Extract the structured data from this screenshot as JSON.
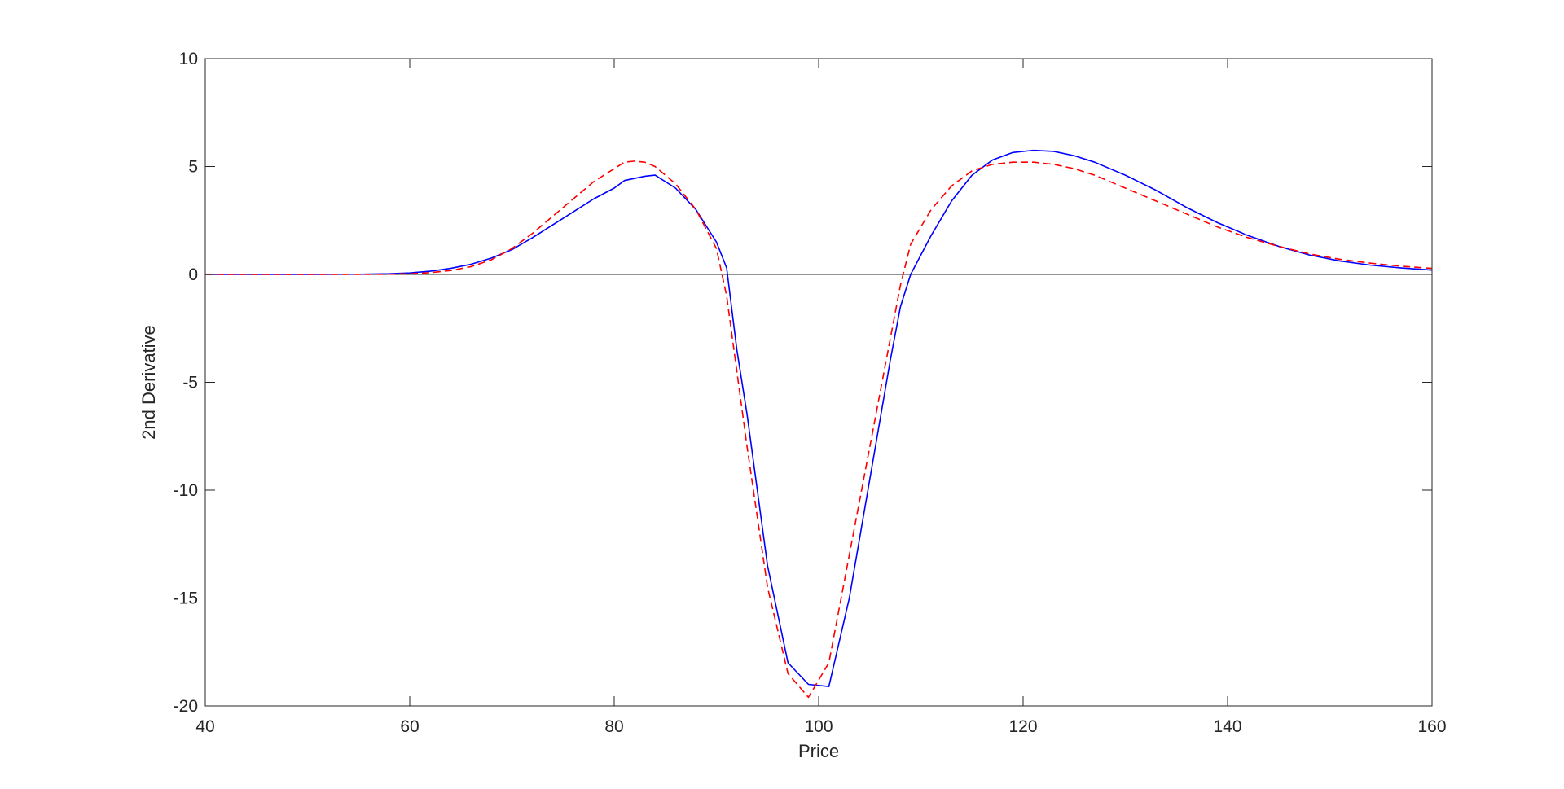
{
  "chart_data": {
    "type": "line",
    "title": "",
    "xlabel": "Price",
    "ylabel": "2nd Derivative",
    "xlim": [
      40,
      160
    ],
    "ylim": [
      -20,
      10
    ],
    "xticks": [
      40,
      60,
      80,
      100,
      120,
      140,
      160
    ],
    "yticks": [
      -20,
      -15,
      -10,
      -5,
      0,
      5,
      10
    ],
    "grid": false,
    "legend": "none",
    "reference_line": {
      "y": 0,
      "color": "#262626"
    },
    "series": [
      {
        "color": "#0000ff",
        "style": "solid",
        "x": [
          40,
          45,
          50,
          55,
          58,
          60,
          62,
          64,
          66,
          68,
          70,
          72,
          74,
          76,
          78,
          80,
          81,
          83,
          84,
          86,
          88,
          90,
          91,
          92,
          93,
          95,
          97,
          99,
          101,
          103,
          105,
          107,
          108,
          109,
          111,
          113,
          115,
          117,
          119,
          121,
          123,
          125,
          127,
          130,
          133,
          136,
          139,
          142,
          145,
          148,
          151,
          154,
          157,
          160
        ],
        "y": [
          0,
          0,
          0,
          0.01,
          0.03,
          0.07,
          0.15,
          0.28,
          0.47,
          0.76,
          1.15,
          1.7,
          2.3,
          2.9,
          3.5,
          4.0,
          4.35,
          4.55,
          4.6,
          4.0,
          3.0,
          1.5,
          0.3,
          -3.5,
          -6.5,
          -13.5,
          -18.0,
          -19.0,
          -19.1,
          -15.0,
          -9.5,
          -4.0,
          -1.5,
          0.0,
          1.8,
          3.4,
          4.6,
          5.3,
          5.65,
          5.75,
          5.7,
          5.5,
          5.2,
          4.6,
          3.9,
          3.1,
          2.4,
          1.8,
          1.3,
          0.9,
          0.62,
          0.43,
          0.3,
          0.2
        ]
      },
      {
        "color": "#ff0000",
        "style": "dashed",
        "x": [
          40,
          45,
          50,
          55,
          58,
          60,
          62,
          64,
          66,
          68,
          70,
          72,
          74,
          76,
          78,
          80,
          81,
          82,
          83,
          84,
          86,
          88,
          90,
          91,
          92,
          93,
          95,
          97,
          99,
          101,
          103,
          105,
          107,
          108,
          109,
          111,
          113,
          115,
          117,
          119,
          121,
          123,
          125,
          127,
          130,
          133,
          136,
          139,
          142,
          145,
          148,
          151,
          154,
          157,
          160
        ],
        "y": [
          0,
          0,
          0,
          0,
          0.01,
          0.03,
          0.08,
          0.18,
          0.36,
          0.68,
          1.2,
          1.9,
          2.7,
          3.5,
          4.3,
          4.9,
          5.2,
          5.25,
          5.2,
          5.0,
          4.2,
          3.0,
          1.2,
          -1.0,
          -4.5,
          -8.0,
          -14.5,
          -18.5,
          -19.6,
          -18.0,
          -13.0,
          -8.0,
          -3.0,
          -0.5,
          1.4,
          3.0,
          4.1,
          4.8,
          5.1,
          5.2,
          5.2,
          5.1,
          4.9,
          4.6,
          4.0,
          3.4,
          2.8,
          2.2,
          1.7,
          1.3,
          0.95,
          0.7,
          0.52,
          0.38,
          0.28
        ]
      }
    ]
  }
}
